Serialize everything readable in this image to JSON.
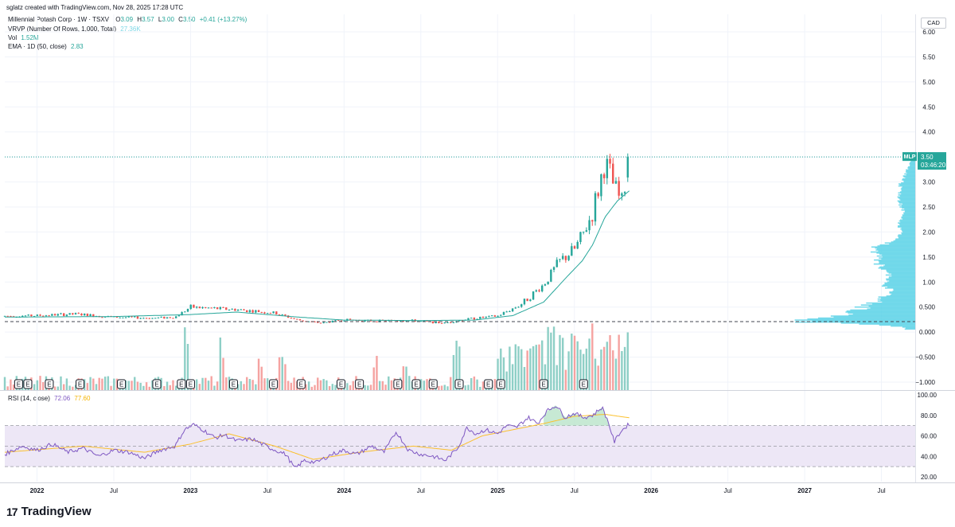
{
  "header": {
    "created_by": "sglatz created with TradingView.com, Nov 28, 2025 17:28 UTC"
  },
  "legend": {
    "symbol": "Millennial Potash Corp · 1W · TSXV",
    "o_label": "O",
    "o_value": "3.09",
    "h_label": "H",
    "h_value": "3.57",
    "l_label": "L",
    "l_value": "3.00",
    "c_label": "C",
    "c_value": "3.50",
    "change": "+0.41 (+13.27%)",
    "vrvp_label": "VRVP (Number Of Rows, 1,000, Total)",
    "vrvp_value": "27.36K",
    "vol_label": "Vol",
    "vol_value": "1.52M",
    "ema_label": "EMA · 1D (50, close)",
    "ema_value": "2.83",
    "rsi_label": "RSI (14, close)",
    "rsi_value": "72.06",
    "rsi_ma_value": "77.60"
  },
  "currency": "CAD",
  "price_tag": {
    "ticker": "MLP",
    "price": "3.50",
    "countdown": "03:46:20"
  },
  "brand": {
    "name": "TradingView",
    "logo": "17"
  },
  "colors": {
    "up": "#26a69a",
    "down": "#ef5350",
    "vol_up": "#8ecfc6",
    "vol_down": "#f5a3a1",
    "ema": "#26a69a",
    "vrvp": "#5fd3e8",
    "rsi": "#7e57c2",
    "rsi_ma": "#fbc02d",
    "rsi_band": "#ede7f6",
    "price_tag": "#26a69a"
  },
  "chart_data": {
    "type": "candlestick",
    "title": "Millennial Potash Corp · 1W · TSXV",
    "price_axis": [
      "6.00",
      "5.50",
      "5.00",
      "4.50",
      "4.00",
      "3.50",
      "3.00",
      "2.50",
      "2.00",
      "1.50",
      "1.00",
      "0.500",
      "0.000",
      "−0.500",
      "−1.000"
    ],
    "price_axis_values": [
      6.0,
      5.5,
      5.0,
      4.5,
      4.0,
      3.5,
      3.0,
      2.5,
      2.0,
      1.5,
      1.0,
      0.5,
      0.0,
      -0.5,
      -1.0
    ],
    "rsi_axis": [
      "100.00",
      "80.00",
      "60.00",
      "40.00",
      "20.00"
    ],
    "rsi_axis_values": [
      100,
      80,
      60,
      40,
      20
    ],
    "rsi_levels": {
      "upper": 70,
      "middle": 50,
      "lower": 30
    },
    "time_axis": [
      "2022",
      "Jul",
      "2023",
      "Jul",
      "2024",
      "Jul",
      "2025",
      "Jul",
      "2026",
      "Jul",
      "2027",
      "Jul"
    ],
    "time_axis_values": [
      2022.0,
      2022.5,
      2023.0,
      2023.5,
      2024.0,
      2024.5,
      2025.0,
      2025.5,
      2026.0,
      2026.5,
      2027.0,
      2027.5
    ],
    "ylim": [
      -1.1,
      6.1
    ],
    "xlim": [
      2021.79,
      2027.72
    ],
    "last_price": 3.5,
    "dashed_level": 0.21,
    "earnings_marker": "E",
    "earnings_dates": [
      2021.88,
      2021.94,
      2022.08,
      2022.28,
      2022.55,
      2022.78,
      2022.94,
      2023.0,
      2023.28,
      2023.54,
      2023.72,
      2023.98,
      2024.1,
      2024.35,
      2024.47,
      2024.58,
      2024.75,
      2024.94,
      2025.02,
      2025.3,
      2025.56
    ],
    "price_keypoints": [
      [
        2021.79,
        0.32
      ],
      [
        2022.0,
        0.33
      ],
      [
        2022.25,
        0.36
      ],
      [
        2022.5,
        0.3
      ],
      [
        2022.75,
        0.28
      ],
      [
        2022.9,
        0.3
      ],
      [
        2023.0,
        0.5
      ],
      [
        2023.1,
        0.48
      ],
      [
        2023.3,
        0.45
      ],
      [
        2023.55,
        0.38
      ],
      [
        2023.7,
        0.24
      ],
      [
        2023.85,
        0.18
      ],
      [
        2024.0,
        0.25
      ],
      [
        2024.2,
        0.22
      ],
      [
        2024.4,
        0.24
      ],
      [
        2024.65,
        0.18
      ],
      [
        2024.8,
        0.26
      ],
      [
        2025.0,
        0.32
      ],
      [
        2025.15,
        0.55
      ],
      [
        2025.3,
        0.95
      ],
      [
        2025.4,
        1.4
      ],
      [
        2025.5,
        1.65
      ],
      [
        2025.55,
        1.9
      ],
      [
        2025.62,
        2.4
      ],
      [
        2025.66,
        2.9
      ],
      [
        2025.7,
        3.4
      ],
      [
        2025.74,
        3.05
      ],
      [
        2025.78,
        2.75
      ],
      [
        2025.81,
        2.6
      ],
      [
        2025.84,
        3.09
      ],
      [
        2025.86,
        3.5
      ]
    ],
    "ema_keypoints": [
      [
        2021.79,
        0.3
      ],
      [
        2022.5,
        0.31
      ],
      [
        2023.0,
        0.35
      ],
      [
        2023.3,
        0.4
      ],
      [
        2023.7,
        0.3
      ],
      [
        2024.0,
        0.24
      ],
      [
        2024.5,
        0.23
      ],
      [
        2024.85,
        0.24
      ],
      [
        2025.1,
        0.33
      ],
      [
        2025.3,
        0.6
      ],
      [
        2025.45,
        1.1
      ],
      [
        2025.55,
        1.42
      ],
      [
        2025.62,
        1.75
      ],
      [
        2025.7,
        2.3
      ],
      [
        2025.78,
        2.62
      ],
      [
        2025.86,
        2.83
      ]
    ],
    "rsi_keypoints": [
      [
        2021.79,
        42
      ],
      [
        2021.9,
        50
      ],
      [
        2022.0,
        46
      ],
      [
        2022.1,
        52
      ],
      [
        2022.2,
        44
      ],
      [
        2022.3,
        48
      ],
      [
        2022.4,
        40
      ],
      [
        2022.5,
        46
      ],
      [
        2022.6,
        44
      ],
      [
        2022.7,
        38
      ],
      [
        2022.8,
        46
      ],
      [
        2022.9,
        50
      ],
      [
        2022.96,
        66
      ],
      [
        2023.02,
        71
      ],
      [
        2023.08,
        66
      ],
      [
        2023.16,
        58
      ],
      [
        2023.22,
        61
      ],
      [
        2023.3,
        55
      ],
      [
        2023.4,
        57
      ],
      [
        2023.52,
        48
      ],
      [
        2023.62,
        42
      ],
      [
        2023.68,
        28
      ],
      [
        2023.74,
        36
      ],
      [
        2023.82,
        34
      ],
      [
        2023.92,
        42
      ],
      [
        2024.0,
        46
      ],
      [
        2024.08,
        42
      ],
      [
        2024.18,
        50
      ],
      [
        2024.26,
        44
      ],
      [
        2024.34,
        64
      ],
      [
        2024.42,
        46
      ],
      [
        2024.5,
        42
      ],
      [
        2024.58,
        40
      ],
      [
        2024.66,
        36
      ],
      [
        2024.74,
        48
      ],
      [
        2024.8,
        68
      ],
      [
        2024.86,
        62
      ],
      [
        2024.92,
        66
      ],
      [
        2025.0,
        62
      ],
      [
        2025.06,
        70
      ],
      [
        2025.12,
        68
      ],
      [
        2025.2,
        78
      ],
      [
        2025.26,
        72
      ],
      [
        2025.32,
        84
      ],
      [
        2025.38,
        90
      ],
      [
        2025.44,
        78
      ],
      [
        2025.5,
        82
      ],
      [
        2025.56,
        78
      ],
      [
        2025.62,
        80
      ],
      [
        2025.68,
        88
      ],
      [
        2025.72,
        74
      ],
      [
        2025.76,
        54
      ],
      [
        2025.8,
        64
      ],
      [
        2025.86,
        72
      ]
    ],
    "rsi_ma_keypoints": [
      [
        2021.79,
        44
      ],
      [
        2022.3,
        50
      ],
      [
        2022.7,
        44
      ],
      [
        2023.0,
        52
      ],
      [
        2023.25,
        62
      ],
      [
        2023.55,
        50
      ],
      [
        2023.8,
        37
      ],
      [
        2024.1,
        44
      ],
      [
        2024.45,
        50
      ],
      [
        2024.7,
        46
      ],
      [
        2024.9,
        60
      ],
      [
        2025.1,
        66
      ],
      [
        2025.3,
        72
      ],
      [
        2025.5,
        79
      ],
      [
        2025.7,
        81
      ],
      [
        2025.86,
        77.6
      ]
    ],
    "volume_spikes": [
      [
        2022.97,
        0.85
      ],
      [
        2023.2,
        0.7
      ],
      [
        2023.45,
        0.48
      ],
      [
        2023.6,
        0.45
      ],
      [
        2024.2,
        0.48
      ],
      [
        2024.4,
        0.45
      ],
      [
        2024.73,
        0.72
      ],
      [
        2025.2,
        0.85
      ],
      [
        2025.35,
        0.9
      ],
      [
        2025.42,
        1.0
      ],
      [
        2025.5,
        1.0
      ],
      [
        2025.6,
        0.88
      ],
      [
        2025.72,
        0.95
      ],
      [
        2025.86,
        0.88
      ]
    ],
    "vrvp_keypoints": [
      [
        3.45,
        0.03
      ],
      [
        3.2,
        0.08
      ],
      [
        3.0,
        0.12
      ],
      [
        2.7,
        0.15
      ],
      [
        2.4,
        0.1
      ],
      [
        2.2,
        0.14
      ],
      [
        2.0,
        0.12
      ],
      [
        1.8,
        0.2
      ],
      [
        1.65,
        0.4
      ],
      [
        1.55,
        0.3
      ],
      [
        1.45,
        0.35
      ],
      [
        1.3,
        0.28
      ],
      [
        1.1,
        0.22
      ],
      [
        0.95,
        0.3
      ],
      [
        0.85,
        0.2
      ],
      [
        0.75,
        0.25
      ],
      [
        0.6,
        0.35
      ],
      [
        0.5,
        0.45
      ],
      [
        0.4,
        0.55
      ],
      [
        0.32,
        0.75
      ],
      [
        0.25,
        1.0
      ],
      [
        0.2,
        0.9
      ],
      [
        0.15,
        0.35
      ],
      [
        0.1,
        0.1
      ]
    ]
  }
}
